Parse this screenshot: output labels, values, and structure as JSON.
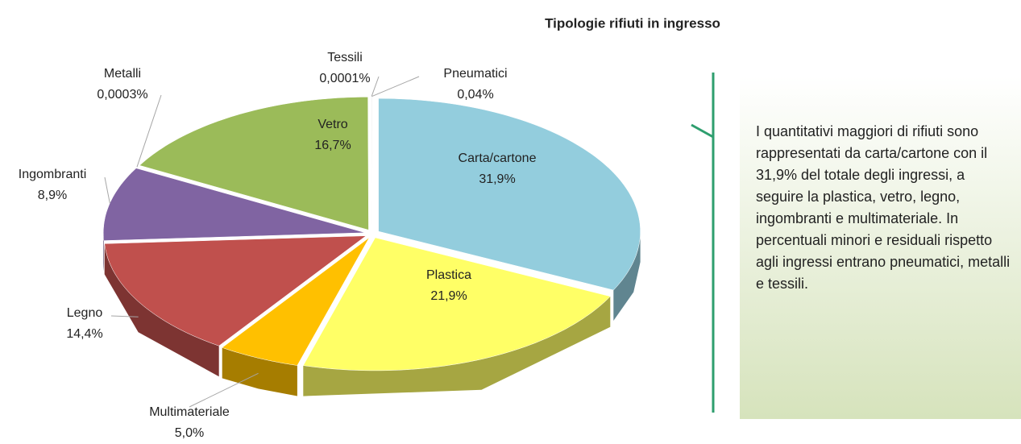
{
  "chart_data": {
    "type": "pie3d",
    "title": "Tipologie rifiuti in ingresso",
    "categories": [
      "Carta/cartone",
      "Plastica",
      "Multimateriale",
      "Legno",
      "Ingombranti",
      "Metalli",
      "Vetro",
      "Tessili",
      "Pneumatici"
    ],
    "values": [
      31.9,
      21.9,
      5.0,
      14.4,
      8.9,
      0.0003,
      16.7,
      0.0001,
      0.04
    ],
    "value_labels": [
      "31,9%",
      "21,9%",
      "5,0%",
      "14,4%",
      "8,9%",
      "0,0003%",
      "16,7%",
      "0,0001%",
      "0,04%"
    ],
    "colors": [
      "#93cddd",
      "#ffff66",
      "#ffc000",
      "#c0504d",
      "#8064a2",
      "#4f81bd",
      "#9bbb59",
      "#f79646",
      "#d9d9d9"
    ],
    "annotation": "I quantitativi maggiori di rifiuti sono rappresentati da carta/cartone con il 31,9% del totale degli ingressi, a seguire la plastica, vetro, legno, ingombranti e multimateriale. In percentuali minori e residuali rispetto agli ingressi entrano pneumatici, metalli e tessili."
  }
}
